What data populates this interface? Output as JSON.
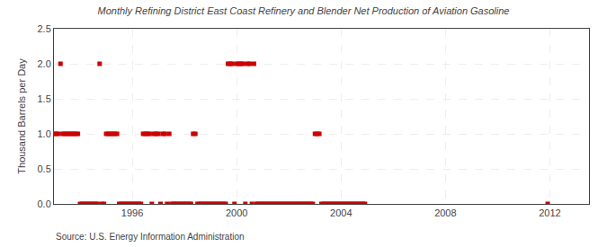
{
  "chart_data": {
    "type": "scatter",
    "title": "Monthly Refining District East Coast Refinery and Blender Net Production of Aviation Gasoline",
    "ylabel": "Thousand Barrels per Day",
    "annotations": [
      "Source: U.S. Energy Information Administration"
    ],
    "marker": "square",
    "color": "#cc0000",
    "grid": true,
    "xlim": [
      1993.0,
      2013.5
    ],
    "xticks": [
      1996,
      2000,
      2004,
      2008,
      2012
    ],
    "ylim": [
      0.0,
      2.5
    ],
    "yticks": [
      {
        "value": 0.0,
        "label": "0.0"
      },
      0.5,
      {
        "value": 1.0,
        "label": "1.0"
      },
      1.5,
      {
        "value": 2.0,
        "label": "2.0"
      },
      2.5
    ],
    "x": [
      1993.0,
      1993.083,
      1993.167,
      1993.25,
      1993.333,
      1993.417,
      1993.5,
      1993.583,
      1993.667,
      1993.75,
      1993.833,
      1993.917,
      1994.0,
      1994.083,
      1994.167,
      1994.25,
      1994.333,
      1994.417,
      1994.5,
      1994.583,
      1994.667,
      1994.75,
      1994.833,
      1994.917,
      1995.0,
      1995.083,
      1995.167,
      1995.25,
      1995.333,
      1995.417,
      1995.5,
      1995.583,
      1995.667,
      1995.75,
      1995.833,
      1995.917,
      1996.0,
      1996.083,
      1996.167,
      1996.25,
      1996.333,
      1996.417,
      1996.5,
      1996.583,
      1996.667,
      1996.75,
      1996.833,
      1996.917,
      1997.0,
      1997.083,
      1997.167,
      1997.25,
      1997.333,
      1997.417,
      1997.5,
      1997.583,
      1997.667,
      1997.75,
      1997.833,
      1997.917,
      1998.0,
      1998.083,
      1998.167,
      1998.25,
      1998.333,
      1998.417,
      1998.5,
      1998.583,
      1998.667,
      1998.75,
      1998.833,
      1998.917,
      1999.0,
      1999.083,
      1999.167,
      1999.25,
      1999.333,
      1999.417,
      1999.5,
      1999.583,
      1999.667,
      1999.75,
      1999.833,
      1999.917,
      2000.0,
      2000.083,
      2000.167,
      2000.25,
      2000.333,
      2000.417,
      2000.5,
      2000.583,
      2000.667,
      2000.75,
      2000.833,
      2000.917,
      2001.0,
      2001.083,
      2001.167,
      2001.25,
      2001.333,
      2001.417,
      2001.5,
      2001.583,
      2001.667,
      2001.75,
      2001.833,
      2001.917,
      2002.0,
      2002.083,
      2002.167,
      2002.25,
      2002.333,
      2002.417,
      2002.5,
      2002.583,
      2002.667,
      2002.75,
      2002.833,
      2002.917,
      2003.0,
      2003.083,
      2003.167,
      2003.25,
      2003.333,
      2003.417,
      2003.5,
      2003.583,
      2003.667,
      2003.75,
      2003.833,
      2003.917,
      2004.0,
      2004.083,
      2004.167,
      2004.25,
      2004.333,
      2004.417,
      2004.5,
      2004.583,
      2004.667,
      2004.75,
      2004.833,
      2004.917,
      2011.917
    ],
    "values": [
      1.0,
      1.0,
      1.0,
      2.0,
      1.0,
      1.0,
      1.0,
      1.0,
      1.0,
      1.0,
      1.0,
      1.0,
      0.0,
      0.0,
      0.0,
      0.0,
      0.0,
      0.0,
      0.0,
      0.0,
      0.0,
      2.0,
      0.0,
      0.0,
      1.0,
      1.0,
      1.0,
      1.0,
      1.0,
      1.0,
      0.0,
      0.0,
      0.0,
      0.0,
      0.0,
      0.0,
      0.0,
      0.0,
      0.0,
      0.0,
      0.0,
      1.0,
      1.0,
      1.0,
      1.0,
      0.0,
      1.0,
      1.0,
      1.0,
      0.0,
      1.0,
      1.0,
      0.0,
      1.0,
      0.0,
      0.0,
      0.0,
      0.0,
      0.0,
      0.0,
      0.0,
      0.0,
      0.0,
      0.0,
      1.0,
      1.0,
      0.0,
      0.0,
      0.0,
      0.0,
      0.0,
      0.0,
      0.0,
      0.0,
      0.0,
      0.0,
      0.0,
      0.0,
      0.0,
      0.0,
      2.0,
      2.0,
      2.0,
      0.0,
      2.0,
      2.0,
      2.0,
      2.0,
      0.0,
      2.0,
      2.0,
      0.0,
      2.0,
      0.0,
      0.0,
      0.0,
      0.0,
      0.0,
      0.0,
      0.0,
      0.0,
      0.0,
      0.0,
      0.0,
      0.0,
      0.0,
      0.0,
      0.0,
      0.0,
      0.0,
      0.0,
      0.0,
      0.0,
      0.0,
      0.0,
      0.0,
      0.0,
      0.0,
      0.0,
      0.0,
      1.0,
      1.0,
      1.0,
      0.0,
      0.0,
      0.0,
      0.0,
      0.0,
      0.0,
      0.0,
      0.0,
      0.0,
      0.0,
      0.0,
      0.0,
      0.0,
      0.0,
      0.0,
      0.0,
      0.0,
      0.0,
      0.0,
      0.0,
      0.0,
      0.0
    ]
  }
}
